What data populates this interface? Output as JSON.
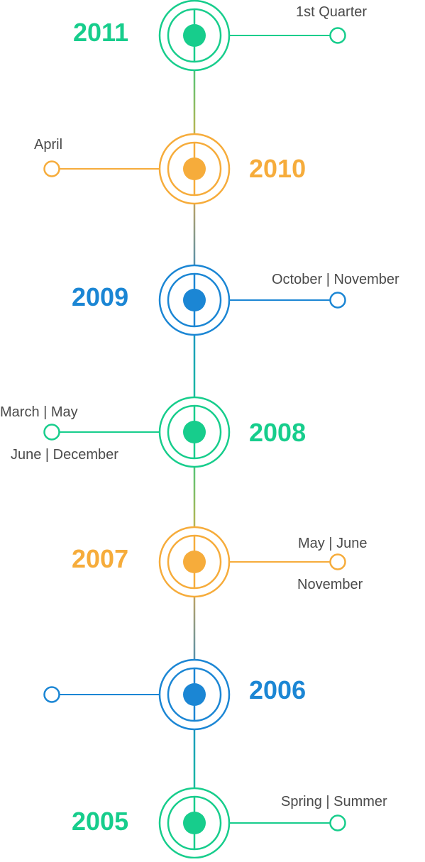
{
  "colors": {
    "green": "#17cd8c",
    "orange": "#f6ac3b",
    "blue": "#1b86d4",
    "label_text": "#4a4a4a"
  },
  "milestones": [
    {
      "year": "2011",
      "color": "green",
      "branch": "right",
      "labels": [
        "1st Quarter"
      ]
    },
    {
      "year": "2010",
      "color": "orange",
      "branch": "left",
      "labels": [
        "April"
      ]
    },
    {
      "year": "2009",
      "color": "blue",
      "branch": "right",
      "labels": [
        "October | November"
      ]
    },
    {
      "year": "2008",
      "color": "green",
      "branch": "left",
      "labels": [
        "March | May",
        "June | December"
      ]
    },
    {
      "year": "2007",
      "color": "orange",
      "branch": "right",
      "labels": [
        "May | June",
        "November"
      ]
    },
    {
      "year": "2006",
      "color": "blue",
      "branch": "left",
      "labels": []
    },
    {
      "year": "2005",
      "color": "green",
      "branch": "right",
      "labels": [
        "Spring | Summer"
      ]
    }
  ]
}
